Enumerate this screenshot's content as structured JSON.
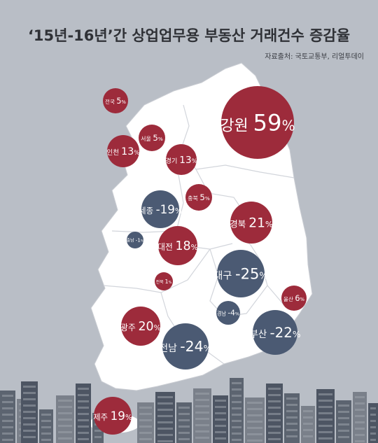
{
  "chart_data": {
    "type": "bubble-map",
    "title": "‘15년-16년’간 상업업무용 부동산 거래건수 증감율",
    "source": "자료출처: 국토교통부, 리얼투데이",
    "unit": "%",
    "regions": [
      {
        "name": "전국",
        "value": 5
      },
      {
        "name": "강원",
        "value": 59
      },
      {
        "name": "서울",
        "value": 5
      },
      {
        "name": "인천",
        "value": 13
      },
      {
        "name": "경기",
        "value": 13
      },
      {
        "name": "충북",
        "value": 5
      },
      {
        "name": "세종",
        "value": -19
      },
      {
        "name": "경북",
        "value": 21
      },
      {
        "name": "충남",
        "value": -1
      },
      {
        "name": "대전",
        "value": 18
      },
      {
        "name": "대구",
        "value": -25
      },
      {
        "name": "전북",
        "value": 1
      },
      {
        "name": "울산",
        "value": 6
      },
      {
        "name": "경남",
        "value": -4
      },
      {
        "name": "광주",
        "value": 20
      },
      {
        "name": "부산",
        "value": -22
      },
      {
        "name": "전남",
        "value": -24
      },
      {
        "name": "제주",
        "value": 19
      }
    ]
  },
  "colors": {
    "background": "#b9bec6",
    "map": "#ffffff",
    "positive": "#9d2b3b",
    "negative": "#4b5a73",
    "skyline": "#6b7079"
  }
}
